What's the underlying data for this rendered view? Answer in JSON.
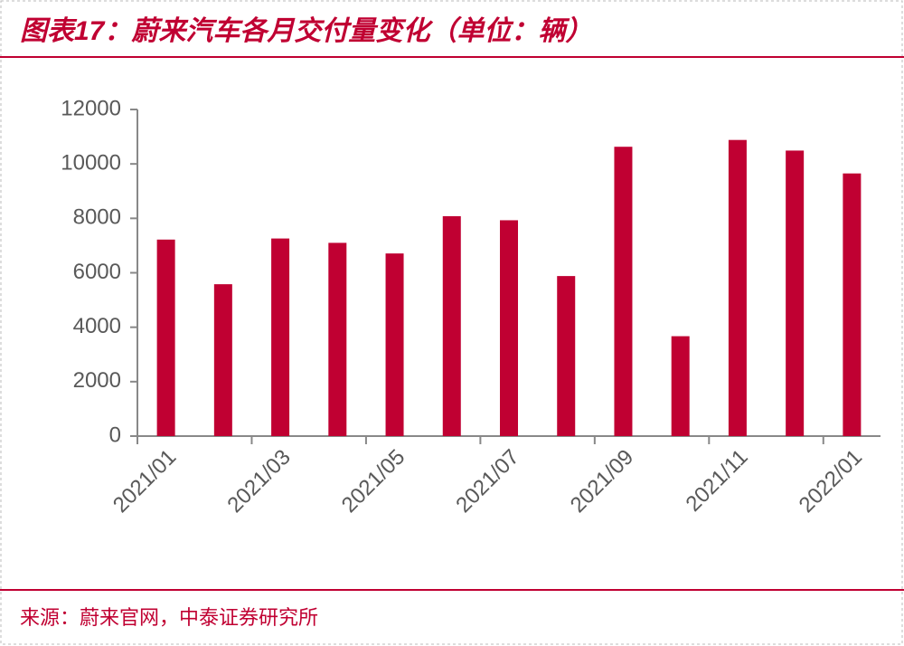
{
  "title": "图表17：蔚来汽车各月交付量变化（单位：辆）",
  "source": "来源：蔚来官网，中泰证券研究所",
  "chart_data": {
    "type": "bar",
    "categories": [
      "2021/01",
      null,
      "2021/03",
      null,
      "2021/05",
      null,
      "2021/07",
      null,
      "2021/09",
      null,
      "2021/11",
      null,
      "2022/01"
    ],
    "values": [
      7220,
      5580,
      7260,
      7100,
      6710,
      8080,
      7930,
      5880,
      10630,
      3670,
      10880,
      10490,
      9650
    ],
    "color": "#c00032",
    "ylim": [
      0,
      12000
    ],
    "yticks": [
      0,
      2000,
      4000,
      6000,
      8000,
      10000,
      12000
    ],
    "grid": false
  }
}
